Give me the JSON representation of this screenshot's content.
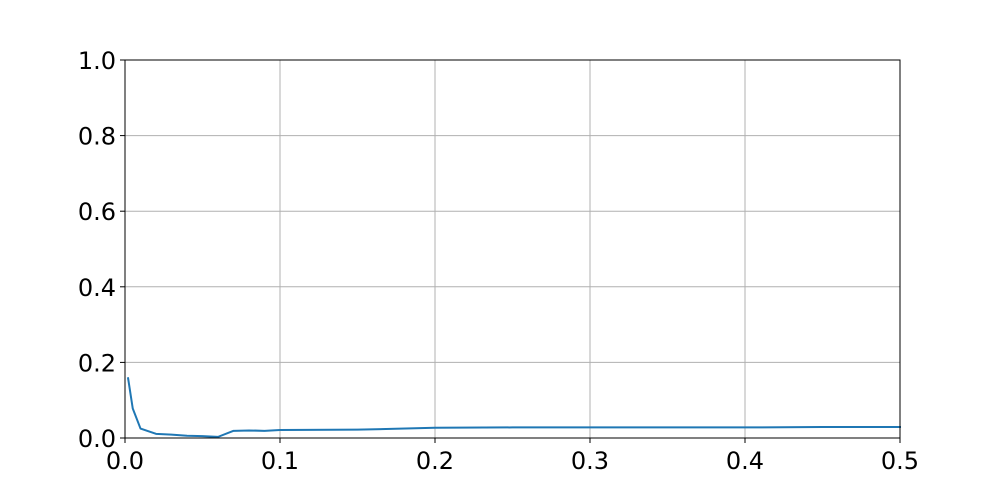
{
  "chart_data": {
    "type": "line",
    "title": "",
    "xlabel": "",
    "ylabel": "",
    "xlim": [
      0.0,
      0.5
    ],
    "ylim": [
      0.0,
      1.0
    ],
    "grid": true,
    "x_ticks": [
      0.0,
      0.1,
      0.2,
      0.3,
      0.4,
      0.5
    ],
    "x_tick_labels": [
      "0.0",
      "0.1",
      "0.2",
      "0.3",
      "0.4",
      "0.5"
    ],
    "y_ticks": [
      0.0,
      0.2,
      0.4,
      0.6,
      0.8,
      1.0
    ],
    "y_tick_labels": [
      "0.0",
      "0.2",
      "0.4",
      "0.6",
      "0.8",
      "1.0"
    ],
    "series": [
      {
        "color": "#1f77b4",
        "x": [
          0.002,
          0.005,
          0.01,
          0.02,
          0.03,
          0.04,
          0.05,
          0.06,
          0.07,
          0.08,
          0.09,
          0.1,
          0.15,
          0.2,
          0.25,
          0.3,
          0.35,
          0.4,
          0.45,
          0.5
        ],
        "y": [
          0.158,
          0.078,
          0.025,
          0.011,
          0.009,
          0.006,
          0.005,
          0.003,
          0.019,
          0.02,
          0.019,
          0.021,
          0.022,
          0.027,
          0.028,
          0.028,
          0.028,
          0.028,
          0.029,
          0.029
        ]
      }
    ]
  }
}
